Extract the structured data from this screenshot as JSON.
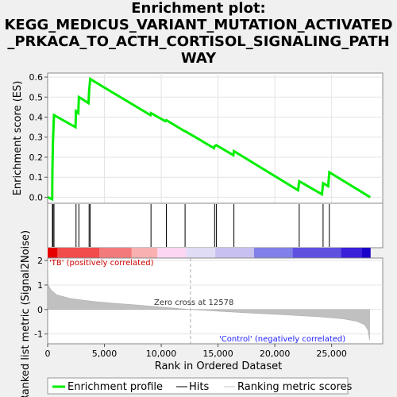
{
  "title_lines": [
    "Enrichment plot:",
    "KEGG_MEDICUS_VARIANT_MUTATION_ACTIVATED",
    "_PRKACA_TO_ACTH_CORTISOL_SIGNALING_PATH",
    "WAY"
  ],
  "chart_data": [
    {
      "type": "line",
      "name": "enrichment-score-panel",
      "ylabel": "Enrichment score (ES)",
      "ylim": [
        -0.03,
        0.62
      ],
      "xlim": [
        0,
        29500
      ],
      "yticks": [
        "0.0",
        "0.1",
        "0.2",
        "0.3",
        "0.4",
        "0.5",
        "0.6"
      ],
      "grid": true,
      "color": "#00ee00",
      "series": [
        {
          "name": "Enrichment profile",
          "points": [
            [
              0,
              0.0
            ],
            [
              400,
              -0.01
            ],
            [
              420,
              0.14
            ],
            [
              470,
              0.28
            ],
            [
              560,
              0.41
            ],
            [
              2450,
              0.35
            ],
            [
              2500,
              0.43
            ],
            [
              2700,
              0.42
            ],
            [
              2750,
              0.5
            ],
            [
              3600,
              0.47
            ],
            [
              3650,
              0.53
            ],
            [
              3750,
              0.59
            ],
            [
              9050,
              0.41
            ],
            [
              9100,
              0.42
            ],
            [
              10350,
              0.38
            ],
            [
              10450,
              0.385
            ],
            [
              12050,
              0.33
            ],
            [
              12100,
              0.33
            ],
            [
              14650,
              0.245
            ],
            [
              14700,
              0.255
            ],
            [
              14850,
              0.26
            ],
            [
              16350,
              0.21
            ],
            [
              16400,
              0.23
            ],
            [
              22050,
              0.035
            ],
            [
              22150,
              0.08
            ],
            [
              24150,
              0.015
            ],
            [
              24250,
              0.07
            ],
            [
              24700,
              0.055
            ],
            [
              24800,
              0.125
            ],
            [
              28400,
              0.0
            ]
          ]
        }
      ]
    },
    {
      "type": "scatter",
      "name": "hits-panel",
      "hits": [
        420,
        470,
        560,
        2500,
        2750,
        3650,
        3750,
        9100,
        10450,
        12100,
        14700,
        14850,
        16400,
        22150,
        24250,
        24800
      ]
    },
    {
      "type": "area",
      "name": "ranked-list-panel",
      "ylabel": "Ranked list metric (Signal2Noise)",
      "xlabel": "Rank in Ordered Dataset",
      "xlim": [
        0,
        29500
      ],
      "ylim": [
        -1.4,
        2.1
      ],
      "yticks": [
        "-1",
        "0",
        "1",
        "2"
      ],
      "xticks": [
        "0",
        "5,000",
        "10,000",
        "15,000",
        "20,000",
        "25,000"
      ],
      "zero_cross": 12578,
      "series": [
        {
          "name": "Ranking metric scores",
          "points": [
            [
              0,
              2.0
            ],
            [
              50,
              1.0
            ],
            [
              300,
              0.8
            ],
            [
              800,
              0.6
            ],
            [
              2000,
              0.45
            ],
            [
              4000,
              0.33
            ],
            [
              6000,
              0.25
            ],
            [
              8000,
              0.18
            ],
            [
              10000,
              0.1
            ],
            [
              12578,
              0.0
            ],
            [
              15000,
              -0.07
            ],
            [
              18000,
              -0.15
            ],
            [
              21000,
              -0.22
            ],
            [
              24000,
              -0.3
            ],
            [
              26000,
              -0.38
            ],
            [
              27200,
              -0.48
            ],
            [
              27900,
              -0.62
            ],
            [
              28200,
              -0.85
            ],
            [
              28350,
              -1.25
            ]
          ]
        }
      ]
    }
  ],
  "annotations": {
    "positive": "'TB' (positively correlated)",
    "negative": "'Control' (negatively correlated)",
    "zero_cross": "Zero cross at 12578"
  },
  "legend": [
    {
      "label": "Enrichment profile",
      "color": "#00ee00"
    },
    {
      "label": "Hits",
      "color": "#000000"
    },
    {
      "label": "Ranking metric scores",
      "color": "#c0c0c0"
    }
  ],
  "heatmap_colors": [
    "#e60000",
    "#f24c4c",
    "#f37a7a",
    "#f9b0b0",
    "#fcd6f2",
    "#e0dcf5",
    "#c8c0ee",
    "#8080e8",
    "#6050e0",
    "#3a20d8",
    "#1a00c8"
  ]
}
